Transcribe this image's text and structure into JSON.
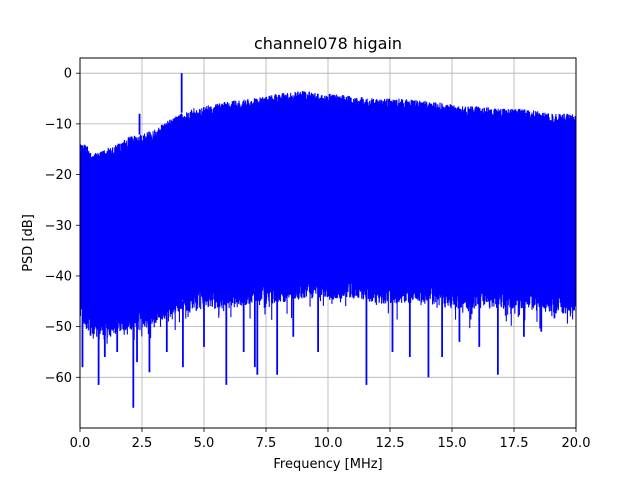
{
  "chart_data": {
    "type": "line",
    "title": "channel078 higain",
    "xlabel": "Frequency [MHz]",
    "ylabel": "PSD [dB]",
    "xlim": [
      0,
      20
    ],
    "ylim": [
      -70,
      3
    ],
    "grid": true,
    "x_ticks": [
      0,
      2.5,
      5,
      7.5,
      10,
      12.5,
      15,
      17.5,
      20
    ],
    "x_tick_labels": [
      "0.0",
      "2.5",
      "5.0",
      "7.5",
      "10.0",
      "12.5",
      "15.0",
      "17.5",
      "20.0"
    ],
    "y_ticks": [
      0,
      -10,
      -20,
      -30,
      -40,
      -50,
      -60
    ],
    "y_tick_labels": [
      "0",
      "−10",
      "−20",
      "−30",
      "−40",
      "−50",
      "−60"
    ],
    "series": [
      {
        "color": "#0000ff",
        "upper_envelope": {
          "x": [
            0,
            0.3,
            0.5,
            1.0,
            1.5,
            2.0,
            2.5,
            3.0,
            3.5,
            4.0,
            4.5,
            5.0,
            6.0,
            7.0,
            7.5,
            8.0,
            9.0,
            10.0,
            11.0,
            12.0,
            13.0,
            14.0,
            15.0,
            15.5,
            16.0,
            17.0,
            18.0,
            19.0,
            20.0
          ],
          "y": [
            -14,
            -14,
            -16,
            -15,
            -14,
            -12.5,
            -12,
            -11,
            -9.5,
            -8,
            -7,
            -6.5,
            -5.5,
            -5,
            -4.5,
            -4,
            -3.5,
            -4,
            -4.5,
            -5,
            -5,
            -5.5,
            -6,
            -6.5,
            -6.5,
            -7,
            -7,
            -8,
            -8
          ]
        },
        "lower_envelope": {
          "x": [
            0,
            0.5,
            1.0,
            1.5,
            2.0,
            2.5,
            3.0,
            3.5,
            4.0,
            4.5,
            5.0,
            6.0,
            7.0,
            7.5,
            8.0,
            9.0,
            10.0,
            11.0,
            12.0,
            13.0,
            14.0,
            15.0,
            15.5,
            16.0,
            17.0,
            18.0,
            19.0,
            20.0
          ],
          "y": [
            -46,
            -50,
            -50,
            -49,
            -48,
            -48,
            -47,
            -46,
            -45,
            -45,
            -44,
            -44,
            -43,
            -43,
            -43,
            -42,
            -42,
            -42,
            -43,
            -43,
            -43,
            -44,
            -44,
            -44,
            -44,
            -44,
            -45,
            -45
          ]
        },
        "peaks_up": [
          {
            "x": 4.1,
            "y": 0
          },
          {
            "x": 2.4,
            "y": -8
          }
        ],
        "dips": [
          {
            "x": 0.1,
            "y": -58
          },
          {
            "x": 0.75,
            "y": -61.5
          },
          {
            "x": 1.0,
            "y": -56
          },
          {
            "x": 1.5,
            "y": -55
          },
          {
            "x": 2.15,
            "y": -66
          },
          {
            "x": 2.3,
            "y": -57
          },
          {
            "x": 2.8,
            "y": -59
          },
          {
            "x": 3.5,
            "y": -55
          },
          {
            "x": 4.15,
            "y": -58
          },
          {
            "x": 5.0,
            "y": -54
          },
          {
            "x": 5.9,
            "y": -61.5
          },
          {
            "x": 6.6,
            "y": -55
          },
          {
            "x": 7.05,
            "y": -58
          },
          {
            "x": 7.15,
            "y": -59.5
          },
          {
            "x": 7.95,
            "y": -59.5
          },
          {
            "x": 8.6,
            "y": -52
          },
          {
            "x": 9.6,
            "y": -55
          },
          {
            "x": 11.55,
            "y": -61.5
          },
          {
            "x": 12.6,
            "y": -55
          },
          {
            "x": 13.3,
            "y": -56
          },
          {
            "x": 14.05,
            "y": -60
          },
          {
            "x": 14.6,
            "y": -56
          },
          {
            "x": 15.3,
            "y": -53
          },
          {
            "x": 16.1,
            "y": -54
          },
          {
            "x": 16.85,
            "y": -59.5
          },
          {
            "x": 17.9,
            "y": -52
          },
          {
            "x": 18.6,
            "y": -51
          }
        ]
      }
    ]
  }
}
